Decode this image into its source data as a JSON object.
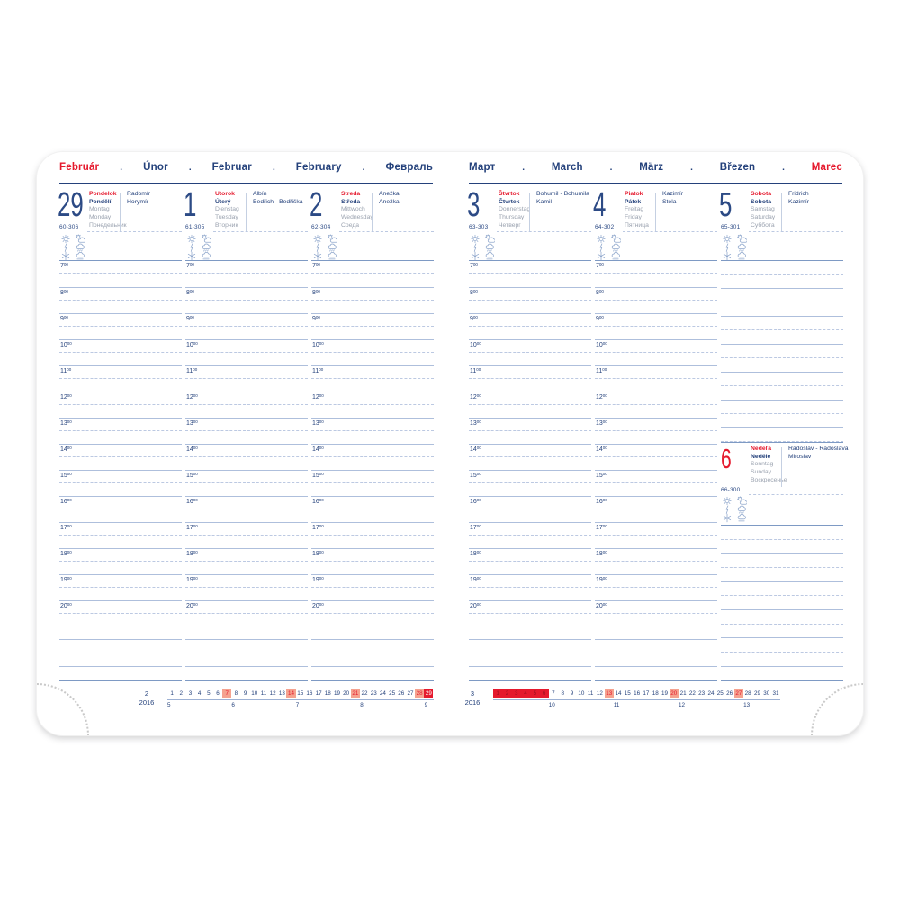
{
  "diary": {
    "separator": ".",
    "hour_sup": "00",
    "hours": [
      "7",
      "8",
      "9",
      "10",
      "11",
      "12",
      "13",
      "14",
      "15",
      "16",
      "17",
      "18",
      "19",
      "20"
    ],
    "weather_icons": [
      "sun",
      "sun-cloud",
      "lightning",
      "rain-cloud",
      "snowflake",
      "wind-cloud"
    ],
    "colors": {
      "navy": "#24417b",
      "num": "#2c4a85",
      "red": "#e5192d",
      "gray": "#9aa2af",
      "line": "#aebfdc",
      "dash": "#bcc9e2",
      "strong": "#7e9ac4",
      "salmon": "#f5a28f",
      "icon": "#8fa7cc",
      "dots": "#c9c9c9",
      "rule": "#9db1d4"
    },
    "left_page": {
      "months": [
        "Február",
        "Únor",
        "Februar",
        "February",
        "Февраль"
      ],
      "red_month_index": 0,
      "days": [
        {
          "number": "29",
          "week_range": "60-306",
          "names": [
            "Pondelok",
            "Pondělí",
            "Montag",
            "Monday",
            "Понедельник"
          ],
          "namedays": [
            "Radomír",
            "Horymír"
          ]
        },
        {
          "number": "1",
          "week_range": "61-305",
          "names": [
            "Utorok",
            "Úterý",
            "Dienstag",
            "Tuesday",
            "Вторник"
          ],
          "namedays": [
            "Albín",
            "Bedřich - Bedřiška"
          ]
        },
        {
          "number": "2",
          "week_range": "62-304",
          "names": [
            "Streda",
            "Středa",
            "Mittwoch",
            "Wednesday",
            "Среда"
          ],
          "namedays": [
            "Anežka",
            "Anežka"
          ]
        }
      ],
      "minical": {
        "month": "2",
        "year": "2016",
        "num_days": 29,
        "sunday_days": [
          7,
          14,
          21,
          28
        ],
        "today_days": [
          29
        ],
        "red_week_days": [],
        "week_rows": [
          {
            "label": "5",
            "day": 1
          },
          {
            "label": "6",
            "day": 8
          },
          {
            "label": "7",
            "day": 15
          },
          {
            "label": "8",
            "day": 22
          },
          {
            "label": "9",
            "day": 29
          }
        ]
      }
    },
    "right_page": {
      "months": [
        "Март",
        "March",
        "März",
        "Březen",
        "Marec"
      ],
      "red_month_index": 4,
      "days": [
        {
          "number": "3",
          "week_range": "63-303",
          "names": [
            "Štvrtok",
            "Čtvrtek",
            "Donnerstag",
            "Thursday",
            "Четверг"
          ],
          "namedays": [
            "Bohumil - Bohumila",
            "Kamil"
          ]
        },
        {
          "number": "4",
          "week_range": "64-302",
          "names": [
            "Piatok",
            "Pátek",
            "Freitag",
            "Friday",
            "Пятница"
          ],
          "namedays": [
            "Kazimír",
            "Stela"
          ]
        },
        {
          "number": "5",
          "week_range": "65-301",
          "names": [
            "Sobota",
            "Sobota",
            "Samstag",
            "Saturday",
            "Суббота"
          ],
          "namedays": [
            "Fridrich",
            "Kazimír"
          ]
        }
      ],
      "sunday": {
        "number": "6",
        "week_range": "66-300",
        "names": [
          "Nedeľa",
          "Neděle",
          "Sonntag",
          "Sunday",
          "Воскресенье"
        ],
        "namedays": [
          "Radoslav - Radoslava",
          "Miroslav"
        ]
      },
      "minical": {
        "month": "3",
        "year": "2016",
        "num_days": 31,
        "sunday_days": [
          13,
          20,
          27
        ],
        "today_days": [],
        "red_week_days": [
          1,
          2,
          3,
          4,
          5,
          6
        ],
        "week_rows": [
          {
            "label": "10",
            "day": 7
          },
          {
            "label": "11",
            "day": 14
          },
          {
            "label": "12",
            "day": 21
          },
          {
            "label": "13",
            "day": 28
          }
        ]
      }
    }
  }
}
